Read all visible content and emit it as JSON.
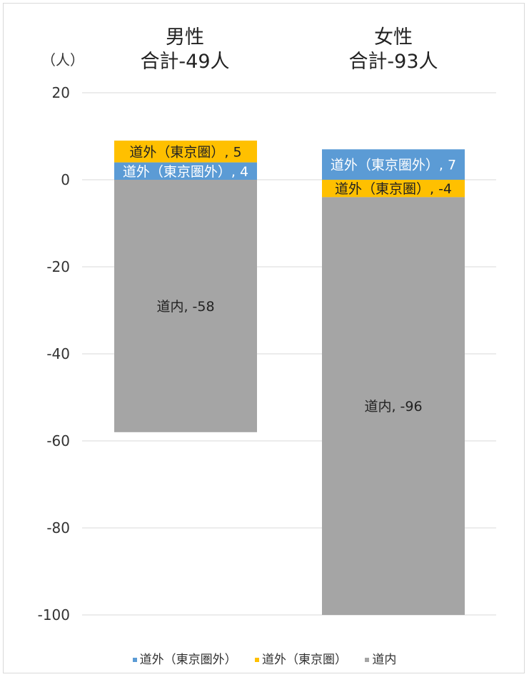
{
  "unit_label": "（人）",
  "chart_data": {
    "type": "bar",
    "stacked": true,
    "categories": [
      "男性",
      "女性"
    ],
    "category_titles": [
      {
        "line1": "男性",
        "line2": "合計-49人"
      },
      {
        "line1": "女性",
        "line2": "合計-93人"
      }
    ],
    "series": [
      {
        "name": "道外（東京圏外）",
        "color": "#5b9bd5",
        "values": [
          4,
          7
        ],
        "data_labels": [
          "道外（東京圏外）, 4",
          "道外（東京圏外）, 7"
        ]
      },
      {
        "name": "道外（東京圏）",
        "color": "#ffc000",
        "values": [
          5,
          -4
        ],
        "data_labels": [
          "道外（東京圏）, 5",
          "道外（東京圏）, -4"
        ]
      },
      {
        "name": "道内",
        "color": "#a5a5a5",
        "values": [
          -58,
          -96
        ],
        "data_labels": [
          "道内, -58",
          "道内, -96"
        ]
      }
    ],
    "ylim": [
      -100,
      20
    ],
    "yticks": [
      "20",
      "0",
      "-20",
      "-40",
      "-60",
      "-80",
      "-100"
    ],
    "grid": true,
    "legend_position": "bottom"
  }
}
